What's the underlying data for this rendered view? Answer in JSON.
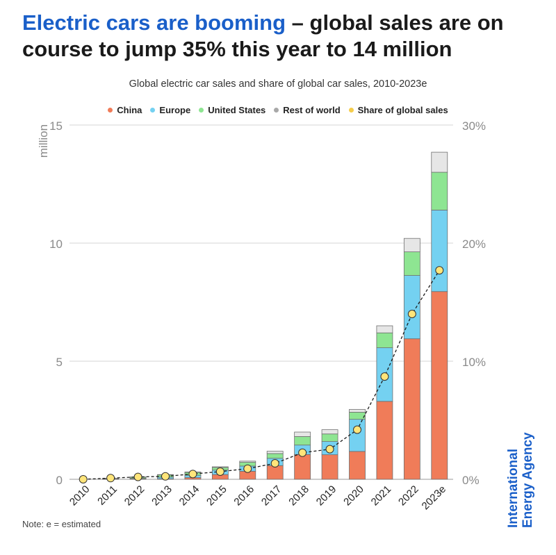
{
  "headline": {
    "highlight": "Electric cars are booming",
    "rest": " – global sales are on course to jump 35% this year to 14 million"
  },
  "chart_data": {
    "type": "bar",
    "stacked": true,
    "title": "Global electric car sales and share of global car sales, 2010-2023e",
    "ylabel": "million",
    "ylim": [
      0,
      15
    ],
    "yticks": [
      "0",
      "5",
      "10",
      "15"
    ],
    "y2lim": [
      0,
      30
    ],
    "y2ticks": [
      "0%",
      "10%",
      "20%",
      "30%"
    ],
    "grid": true,
    "legend_position": "top",
    "categories": [
      "2010",
      "2011",
      "2012",
      "2013",
      "2014",
      "2015",
      "2016",
      "2017",
      "2018",
      "2019",
      "2020",
      "2021",
      "2022",
      "2023e"
    ],
    "series": [
      {
        "name": "China",
        "color": "#f07c59",
        "values": [
          0.0,
          0.01,
          0.02,
          0.02,
          0.07,
          0.2,
          0.34,
          0.58,
          1.05,
          1.04,
          1.18,
          3.3,
          5.95,
          7.95
        ]
      },
      {
        "name": "Europe",
        "color": "#74d1f1",
        "values": [
          0.0,
          0.01,
          0.02,
          0.07,
          0.1,
          0.19,
          0.22,
          0.31,
          0.4,
          0.56,
          1.36,
          2.27,
          2.68,
          3.45
        ]
      },
      {
        "name": "United States",
        "color": "#8ee592",
        "values": [
          0.0,
          0.02,
          0.05,
          0.1,
          0.12,
          0.11,
          0.16,
          0.2,
          0.36,
          0.32,
          0.3,
          0.63,
          1.0,
          1.6
        ]
      },
      {
        "name": "Rest of world",
        "color": "#e6e6e6",
        "values": [
          0.0,
          0.0,
          0.01,
          0.01,
          0.02,
          0.03,
          0.05,
          0.1,
          0.19,
          0.18,
          0.12,
          0.3,
          0.57,
          0.85
        ]
      }
    ],
    "share": {
      "name": "Share of global sales",
      "color": "#ffe57a",
      "values": [
        0.0,
        0.1,
        0.2,
        0.25,
        0.45,
        0.65,
        0.9,
        1.35,
        2.25,
        2.55,
        4.2,
        8.7,
        14.0,
        17.7
      ]
    }
  },
  "legend_dot_colors": {
    "rest_of_world": "#a8a8a8",
    "share": "#f5cd4c"
  },
  "note": "Note: e = estimated",
  "brand": "International Energy Agency"
}
